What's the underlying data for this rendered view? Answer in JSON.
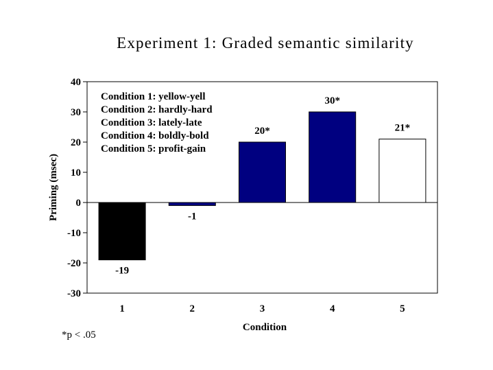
{
  "chart_data": {
    "type": "bar",
    "title": "Experiment 1: Graded semantic similarity",
    "xlabel": "Condition",
    "ylabel": "Priming (msec)",
    "categories": [
      "1",
      "2",
      "3",
      "4",
      "5"
    ],
    "values": [
      -19,
      -1,
      20,
      30,
      21
    ],
    "data_labels": [
      "-19",
      "-1",
      "20*",
      "30*",
      "21*"
    ],
    "bar_colors": [
      "#000000",
      "#000080",
      "#000080",
      "#000080",
      "#ffffff"
    ],
    "ylim": [
      -30,
      40
    ],
    "yticks": [
      40,
      30,
      20,
      10,
      0,
      -10,
      -20,
      -30
    ],
    "ytick_labels": [
      "40",
      "30",
      "20",
      "10",
      "0",
      "-10",
      "-20",
      "-30"
    ],
    "grid": false,
    "legend_placement": "top-left",
    "legend_lines": [
      "Condition 1: yellow-yell",
      "Condition 2: hardly-hard",
      "Condition 3: lately-late",
      "Condition 4: boldly-bold",
      "Condition 5: profit-gain"
    ]
  },
  "footnote": "*p < .05"
}
